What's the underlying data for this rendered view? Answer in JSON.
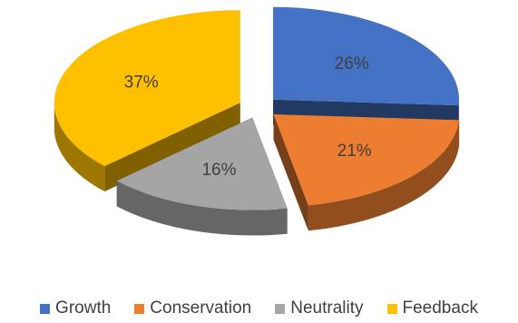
{
  "chart_data": {
    "type": "pie",
    "style": "3d-exploded",
    "categories": [
      "Growth",
      "Conservation",
      "Neutrality",
      "Feedback"
    ],
    "values": [
      26,
      21,
      16,
      37
    ],
    "value_format": "percent",
    "colors": [
      "#4472C4",
      "#ED7D31",
      "#A5A5A5",
      "#FFC000"
    ],
    "legend_position": "bottom",
    "title": ""
  },
  "legend": {
    "items": [
      {
        "label": "Growth",
        "color": "#4472C4"
      },
      {
        "label": "Conservation",
        "color": "#ED7D31"
      },
      {
        "label": "Neutrality",
        "color": "#A5A5A5"
      },
      {
        "label": "Feedback",
        "color": "#FFC000"
      }
    ]
  },
  "slice_labels": [
    "26%",
    "21%",
    "16%",
    "37%"
  ]
}
